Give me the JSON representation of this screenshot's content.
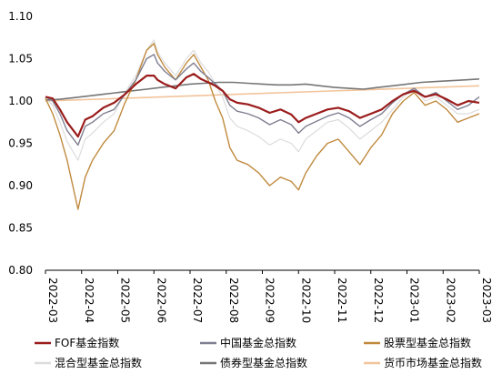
{
  "chart_data": {
    "type": "line",
    "title": "",
    "xlabel": "",
    "ylabel": "",
    "ylim": [
      0.8,
      1.1
    ],
    "yticks": [
      "0.80",
      "0.85",
      "0.90",
      "0.95",
      "1.00",
      "1.05",
      "1.10"
    ],
    "xticks": [
      "2022-03",
      "2022-04",
      "2022-05",
      "2022-06",
      "2022-07",
      "2022-08",
      "2022-09",
      "2022-10",
      "2022-11",
      "2022-12",
      "2023-01",
      "2023-02",
      "2023-03"
    ],
    "xlim": [
      0,
      12
    ],
    "legend_position": "bottom",
    "grid": false,
    "series": [
      {
        "name": "FOF基金指数",
        "color": "#9b1c1c",
        "x": [
          0,
          0.2,
          0.4,
          0.6,
          0.9,
          1.1,
          1.3,
          1.6,
          1.9,
          2.2,
          2.5,
          2.8,
          3.0,
          3.1,
          3.3,
          3.6,
          3.9,
          4.1,
          4.3,
          4.5,
          4.7,
          4.9,
          5.1,
          5.3,
          5.6,
          5.9,
          6.2,
          6.5,
          6.8,
          7.0,
          7.2,
          7.5,
          7.8,
          8.1,
          8.4,
          8.7,
          9.0,
          9.3,
          9.6,
          9.9,
          10.2,
          10.5,
          10.8,
          11.1,
          11.4,
          11.7,
          12.0
        ],
        "y": [
          1.005,
          1.003,
          0.99,
          0.975,
          0.958,
          0.978,
          0.982,
          0.992,
          0.998,
          1.008,
          1.02,
          1.03,
          1.03,
          1.025,
          1.02,
          1.015,
          1.028,
          1.032,
          1.026,
          1.022,
          1.018,
          1.012,
          1.002,
          0.998,
          0.996,
          0.992,
          0.986,
          0.99,
          0.984,
          0.975,
          0.98,
          0.985,
          0.99,
          0.992,
          0.988,
          0.98,
          0.985,
          0.99,
          1.0,
          1.008,
          1.012,
          1.005,
          1.008,
          1.002,
          0.995,
          1.0,
          0.998
        ]
      },
      {
        "name": "中国基金总指数",
        "color": "#7f7f92",
        "x": [
          0,
          0.2,
          0.4,
          0.6,
          0.9,
          1.1,
          1.3,
          1.6,
          1.9,
          2.2,
          2.5,
          2.8,
          3.0,
          3.1,
          3.3,
          3.6,
          3.9,
          4.1,
          4.3,
          4.5,
          4.7,
          4.9,
          5.1,
          5.3,
          5.6,
          5.9,
          6.2,
          6.5,
          6.8,
          7.0,
          7.2,
          7.5,
          7.8,
          8.1,
          8.4,
          8.7,
          9.0,
          9.3,
          9.6,
          9.9,
          10.2,
          10.5,
          10.8,
          11.1,
          11.4,
          11.7,
          12.0
        ],
        "y": [
          1.005,
          1.0,
          0.985,
          0.965,
          0.948,
          0.97,
          0.975,
          0.985,
          0.99,
          1.008,
          1.025,
          1.05,
          1.055,
          1.045,
          1.035,
          1.025,
          1.038,
          1.045,
          1.035,
          1.028,
          1.02,
          1.012,
          0.995,
          0.988,
          0.985,
          0.98,
          0.972,
          0.978,
          0.972,
          0.962,
          0.97,
          0.976,
          0.982,
          0.986,
          0.98,
          0.97,
          0.978,
          0.985,
          0.998,
          1.008,
          1.015,
          1.005,
          1.01,
          1.0,
          0.99,
          0.995,
          1.005
        ]
      },
      {
        "name": "股票型基金总指数",
        "color": "#c08a3e",
        "x": [
          0,
          0.2,
          0.4,
          0.6,
          0.9,
          1.1,
          1.3,
          1.6,
          1.9,
          2.2,
          2.5,
          2.8,
          3.0,
          3.1,
          3.3,
          3.6,
          3.9,
          4.1,
          4.3,
          4.5,
          4.7,
          4.9,
          5.1,
          5.3,
          5.6,
          5.9,
          6.2,
          6.5,
          6.8,
          7.0,
          7.2,
          7.5,
          7.8,
          8.1,
          8.4,
          8.7,
          9.0,
          9.3,
          9.6,
          9.9,
          10.2,
          10.5,
          10.8,
          11.1,
          11.4,
          11.7,
          12.0
        ],
        "y": [
          1.003,
          0.985,
          0.96,
          0.93,
          0.872,
          0.91,
          0.93,
          0.95,
          0.965,
          0.998,
          1.025,
          1.06,
          1.068,
          1.055,
          1.04,
          1.025,
          1.045,
          1.055,
          1.04,
          1.025,
          1.0,
          0.98,
          0.945,
          0.93,
          0.925,
          0.915,
          0.9,
          0.91,
          0.905,
          0.895,
          0.915,
          0.935,
          0.95,
          0.955,
          0.94,
          0.925,
          0.945,
          0.96,
          0.985,
          1.0,
          1.01,
          0.995,
          1.0,
          0.99,
          0.975,
          0.98,
          0.985
        ]
      },
      {
        "name": "混合型基金总指数",
        "color": "#dcdcdc",
        "x": [
          0,
          0.2,
          0.4,
          0.6,
          0.9,
          1.1,
          1.3,
          1.6,
          1.9,
          2.2,
          2.5,
          2.8,
          3.0,
          3.1,
          3.3,
          3.6,
          3.9,
          4.1,
          4.3,
          4.5,
          4.7,
          4.9,
          5.1,
          5.3,
          5.6,
          5.9,
          6.2,
          6.5,
          6.8,
          7.0,
          7.2,
          7.5,
          7.8,
          8.1,
          8.4,
          8.7,
          9.0,
          9.3,
          9.6,
          9.9,
          10.2,
          10.5,
          10.8,
          11.1,
          11.4,
          11.7,
          12.0
        ],
        "y": [
          1.004,
          0.995,
          0.975,
          0.952,
          0.93,
          0.955,
          0.962,
          0.975,
          0.985,
          1.01,
          1.03,
          1.06,
          1.072,
          1.058,
          1.045,
          1.03,
          1.05,
          1.06,
          1.045,
          1.035,
          1.02,
          1.005,
          0.98,
          0.97,
          0.965,
          0.958,
          0.948,
          0.955,
          0.95,
          0.94,
          0.955,
          0.965,
          0.975,
          0.978,
          0.968,
          0.955,
          0.965,
          0.975,
          0.99,
          1.005,
          1.015,
          1.0,
          1.005,
          0.995,
          0.985,
          0.985,
          0.99
        ]
      },
      {
        "name": "债券型基金总指数",
        "color": "#767676",
        "x": [
          0,
          0.4,
          0.8,
          1.2,
          1.6,
          2.0,
          2.4,
          2.8,
          3.2,
          3.6,
          4.0,
          4.4,
          4.8,
          5.2,
          5.6,
          6.0,
          6.4,
          6.8,
          7.2,
          7.6,
          8.0,
          8.4,
          8.8,
          9.2,
          9.6,
          10.0,
          10.4,
          10.8,
          11.2,
          11.6,
          12.0
        ],
        "y": [
          1.001,
          1.002,
          1.004,
          1.006,
          1.008,
          1.01,
          1.012,
          1.014,
          1.016,
          1.018,
          1.02,
          1.021,
          1.022,
          1.022,
          1.021,
          1.02,
          1.019,
          1.019,
          1.02,
          1.018,
          1.016,
          1.015,
          1.014,
          1.016,
          1.018,
          1.02,
          1.022,
          1.023,
          1.024,
          1.025,
          1.026
        ]
      },
      {
        "name": "货币市场基金总指数",
        "color": "#f2c49a",
        "x": [
          0,
          12
        ],
        "y": [
          1.0,
          1.018
        ]
      }
    ]
  }
}
